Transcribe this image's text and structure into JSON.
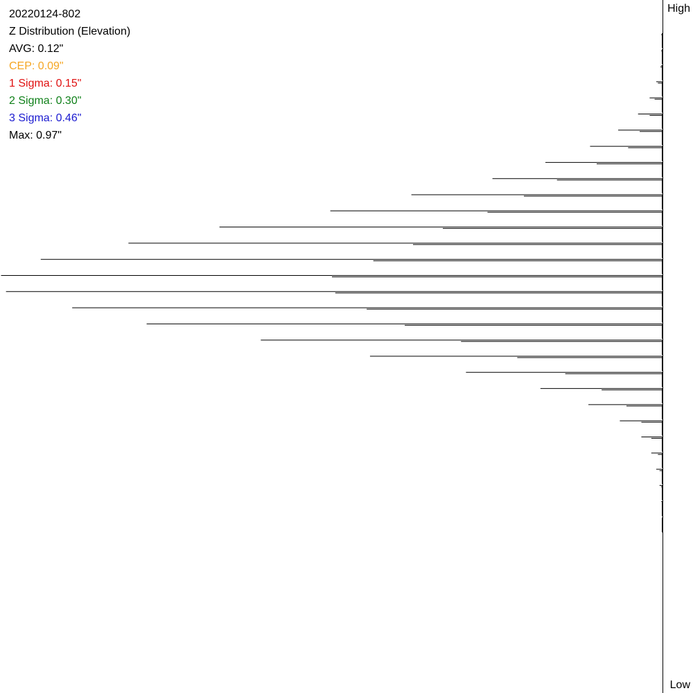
{
  "header": {
    "id": "20220124-802",
    "title": "Z Distribution (Elevation)"
  },
  "stats": [
    {
      "text": "AVG: 0.12\"",
      "color": "#000000"
    },
    {
      "text": "CEP: 0.09\"",
      "color": "#f5a623"
    },
    {
      "text": "1 Sigma: 0.15\"",
      "color": "#e01010"
    },
    {
      "text": "2 Sigma: 0.30\"",
      "color": "#10801a"
    },
    {
      "text": "3 Sigma: 0.46\"",
      "color": "#1a1ad0"
    },
    {
      "text": "Max: 0.97\"",
      "color": "#000000"
    }
  ],
  "axis": {
    "high_label": "High",
    "low_label": "Low"
  },
  "chart_data": {
    "type": "bar",
    "orientation": "horizontal",
    "note_direction": "bars extend leftward from a vertical baseline on the right; top = High, bottom = Low",
    "bins_top_to_bottom": [
      {
        "count": 0.2,
        "cumulative": 1
      },
      {
        "count": 0.4,
        "cumulative": 1
      },
      {
        "count": 1,
        "cumulative": 1.5
      },
      {
        "count": 4,
        "cumulative": 3
      },
      {
        "count": 8,
        "cumulative": 5
      },
      {
        "count": 15,
        "cumulative": 8
      },
      {
        "count": 27,
        "cumulative": 14
      },
      {
        "count": 44,
        "cumulative": 21
      },
      {
        "count": 71,
        "cumulative": 40
      },
      {
        "count": 103,
        "cumulative": 64
      },
      {
        "count": 152,
        "cumulative": 84
      },
      {
        "count": 201,
        "cumulative": 106
      },
      {
        "count": 268,
        "cumulative": 133
      },
      {
        "count": 323,
        "cumulative": 151
      },
      {
        "count": 376,
        "cumulative": 175
      },
      {
        "count": 400,
        "cumulative": 200
      },
      {
        "count": 397,
        "cumulative": 198
      },
      {
        "count": 357,
        "cumulative": 179
      },
      {
        "count": 312,
        "cumulative": 156
      },
      {
        "count": 243,
        "cumulative": 122
      },
      {
        "count": 177,
        "cumulative": 88
      },
      {
        "count": 119,
        "cumulative": 59
      },
      {
        "count": 74,
        "cumulative": 37
      },
      {
        "count": 45,
        "cumulative": 22
      },
      {
        "count": 26,
        "cumulative": 13
      },
      {
        "count": 13,
        "cumulative": 7
      },
      {
        "count": 7,
        "cumulative": 3
      },
      {
        "count": 4,
        "cumulative": 2
      },
      {
        "count": 2,
        "cumulative": 1
      },
      {
        "count": 1,
        "cumulative": 0.5
      },
      {
        "count": 0.5,
        "cumulative": 0.3
      }
    ],
    "max_count": 400,
    "title": "",
    "xlabel": "",
    "ylabel": ""
  }
}
